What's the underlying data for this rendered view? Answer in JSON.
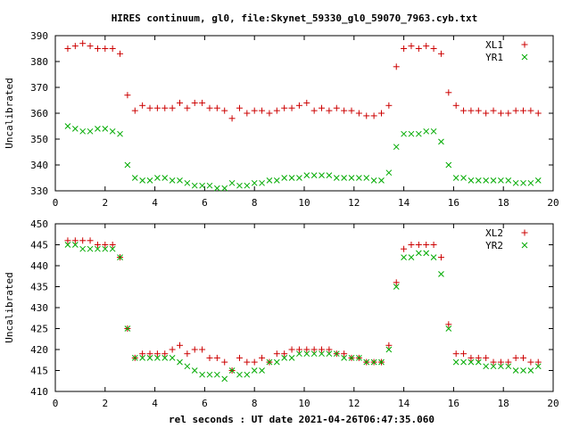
{
  "title": "HIRES continuum, gl0, file:Skynet_59330_gl0_59070_7963.cyb.txt",
  "xlabel": "rel seconds : UT date 2021-04-26T06:47:35.060",
  "colors": {
    "series1": "#cc0000",
    "series2": "#00aa00"
  },
  "chart_data": [
    {
      "type": "scatter",
      "ylabel": "Uncalibrated",
      "xlim": [
        0,
        20
      ],
      "ylim": [
        330,
        390
      ],
      "xticks": [
        0,
        2,
        4,
        6,
        8,
        10,
        12,
        14,
        16,
        18,
        20
      ],
      "yticks": [
        330,
        340,
        350,
        360,
        370,
        380,
        390
      ],
      "legend_position": "top-right",
      "series": [
        {
          "name": "XL1",
          "marker": "plus",
          "x": [
            0.5,
            0.8,
            1.1,
            1.4,
            1.7,
            2.0,
            2.3,
            2.6,
            2.9,
            3.2,
            3.5,
            3.8,
            4.1,
            4.4,
            4.7,
            5.0,
            5.3,
            5.6,
            5.9,
            6.2,
            6.5,
            6.8,
            7.1,
            7.4,
            7.7,
            8.0,
            8.3,
            8.6,
            8.9,
            9.2,
            9.5,
            9.8,
            10.1,
            10.4,
            10.7,
            11.0,
            11.3,
            11.6,
            11.9,
            12.2,
            12.5,
            12.8,
            13.1,
            13.4,
            13.7,
            14.0,
            14.3,
            14.6,
            14.9,
            15.2,
            15.5,
            15.8,
            16.1,
            16.4,
            16.7,
            17.0,
            17.3,
            17.6,
            17.9,
            18.2,
            18.5,
            18.8,
            19.1,
            19.4
          ],
          "y": [
            385,
            386,
            387,
            386,
            385,
            385,
            385,
            383,
            367,
            361,
            363,
            362,
            362,
            362,
            362,
            364,
            362,
            364,
            364,
            362,
            362,
            361,
            358,
            362,
            360,
            361,
            361,
            360,
            361,
            362,
            362,
            363,
            364,
            361,
            362,
            361,
            362,
            361,
            361,
            360,
            359,
            359,
            360,
            363,
            378,
            385,
            386,
            385,
            386,
            385,
            383,
            368,
            363,
            361,
            361,
            361,
            360,
            361,
            360,
            360,
            361,
            361,
            361,
            360
          ]
        },
        {
          "name": "YR1",
          "marker": "cross",
          "x": [
            0.5,
            0.8,
            1.1,
            1.4,
            1.7,
            2.0,
            2.3,
            2.6,
            2.9,
            3.2,
            3.5,
            3.8,
            4.1,
            4.4,
            4.7,
            5.0,
            5.3,
            5.6,
            5.9,
            6.2,
            6.5,
            6.8,
            7.1,
            7.4,
            7.7,
            8.0,
            8.3,
            8.6,
            8.9,
            9.2,
            9.5,
            9.8,
            10.1,
            10.4,
            10.7,
            11.0,
            11.3,
            11.6,
            11.9,
            12.2,
            12.5,
            12.8,
            13.1,
            13.4,
            13.7,
            14.0,
            14.3,
            14.6,
            14.9,
            15.2,
            15.5,
            15.8,
            16.1,
            16.4,
            16.7,
            17.0,
            17.3,
            17.6,
            17.9,
            18.2,
            18.5,
            18.8,
            19.1,
            19.4
          ],
          "y": [
            355,
            354,
            353,
            353,
            354,
            354,
            353,
            352,
            340,
            335,
            334,
            334,
            335,
            335,
            334,
            334,
            333,
            332,
            332,
            332,
            331,
            331,
            333,
            332,
            332,
            333,
            333,
            334,
            334,
            335,
            335,
            335,
            336,
            336,
            336,
            336,
            335,
            335,
            335,
            335,
            335,
            334,
            334,
            337,
            347,
            352,
            352,
            352,
            353,
            353,
            349,
            340,
            335,
            335,
            334,
            334,
            334,
            334,
            334,
            334,
            333,
            333,
            333,
            334
          ]
        }
      ]
    },
    {
      "type": "scatter",
      "ylabel": "Uncalibrated",
      "xlim": [
        0,
        20
      ],
      "ylim": [
        410,
        450
      ],
      "xticks": [
        0,
        2,
        4,
        6,
        8,
        10,
        12,
        14,
        16,
        18,
        20
      ],
      "yticks": [
        410,
        415,
        420,
        425,
        430,
        435,
        440,
        445,
        450
      ],
      "legend_position": "top-right",
      "series": [
        {
          "name": "XL2",
          "marker": "plus",
          "x": [
            0.5,
            0.8,
            1.1,
            1.4,
            1.7,
            2.0,
            2.3,
            2.6,
            2.9,
            3.2,
            3.5,
            3.8,
            4.1,
            4.4,
            4.7,
            5.0,
            5.3,
            5.6,
            5.9,
            6.2,
            6.5,
            6.8,
            7.1,
            7.4,
            7.7,
            8.0,
            8.3,
            8.6,
            8.9,
            9.2,
            9.5,
            9.8,
            10.1,
            10.4,
            10.7,
            11.0,
            11.3,
            11.6,
            11.9,
            12.2,
            12.5,
            12.8,
            13.1,
            13.4,
            13.7,
            14.0,
            14.3,
            14.6,
            14.9,
            15.2,
            15.5,
            15.8,
            16.1,
            16.4,
            16.7,
            17.0,
            17.3,
            17.6,
            17.9,
            18.2,
            18.5,
            18.8,
            19.1,
            19.4
          ],
          "y": [
            446,
            446,
            446,
            446,
            445,
            445,
            445,
            442,
            425,
            418,
            419,
            419,
            419,
            419,
            420,
            421,
            419,
            420,
            420,
            418,
            418,
            417,
            415,
            418,
            417,
            417,
            418,
            417,
            419,
            419,
            420,
            420,
            420,
            420,
            420,
            420,
            419,
            419,
            418,
            418,
            417,
            417,
            417,
            421,
            436,
            444,
            445,
            445,
            445,
            445,
            442,
            426,
            419,
            419,
            418,
            418,
            418,
            417,
            417,
            417,
            418,
            418,
            417,
            417
          ]
        },
        {
          "name": "YR2",
          "marker": "cross",
          "x": [
            0.5,
            0.8,
            1.1,
            1.4,
            1.7,
            2.0,
            2.3,
            2.6,
            2.9,
            3.2,
            3.5,
            3.8,
            4.1,
            4.4,
            4.7,
            5.0,
            5.3,
            5.6,
            5.9,
            6.2,
            6.5,
            6.8,
            7.1,
            7.4,
            7.7,
            8.0,
            8.3,
            8.6,
            8.9,
            9.2,
            9.5,
            9.8,
            10.1,
            10.4,
            10.7,
            11.0,
            11.3,
            11.6,
            11.9,
            12.2,
            12.5,
            12.8,
            13.1,
            13.4,
            13.7,
            14.0,
            14.3,
            14.6,
            14.9,
            15.2,
            15.5,
            15.8,
            16.1,
            16.4,
            16.7,
            17.0,
            17.3,
            17.6,
            17.9,
            18.2,
            18.5,
            18.8,
            19.1,
            19.4
          ],
          "y": [
            445,
            445,
            444,
            444,
            444,
            444,
            444,
            442,
            425,
            418,
            418,
            418,
            418,
            418,
            418,
            417,
            416,
            415,
            414,
            414,
            414,
            413,
            415,
            414,
            414,
            415,
            415,
            417,
            417,
            418,
            418,
            419,
            419,
            419,
            419,
            419,
            419,
            418,
            418,
            418,
            417,
            417,
            417,
            420,
            435,
            442,
            442,
            443,
            443,
            442,
            438,
            425,
            417,
            417,
            417,
            417,
            416,
            416,
            416,
            416,
            415,
            415,
            415,
            416
          ]
        }
      ]
    }
  ]
}
